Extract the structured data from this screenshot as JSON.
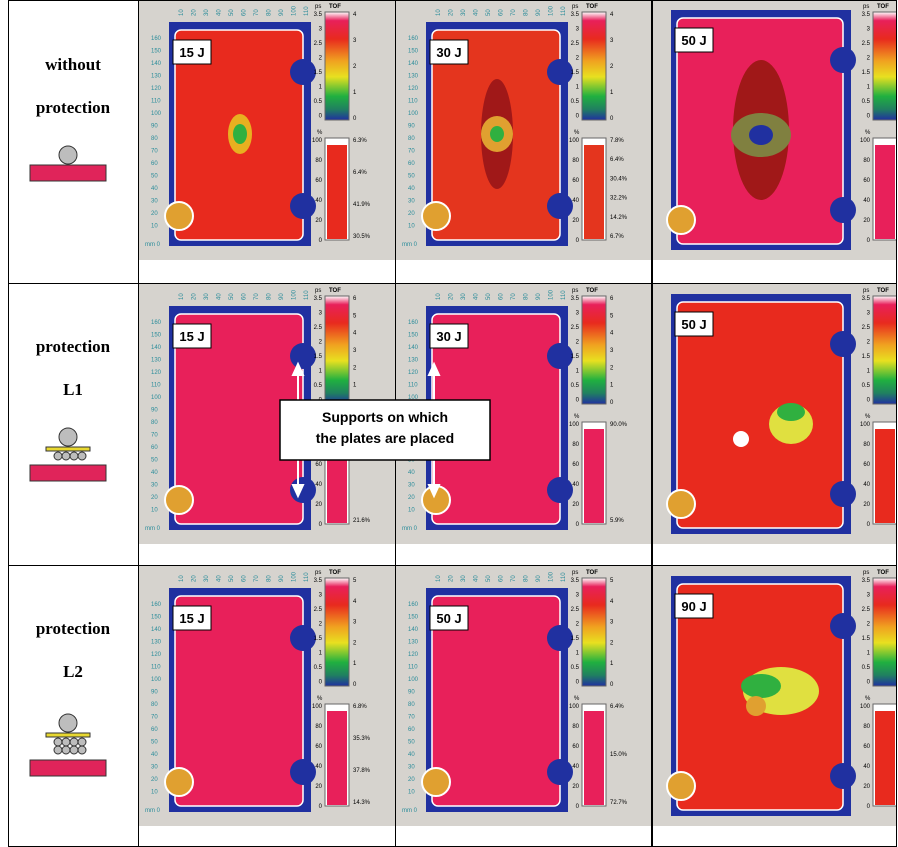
{
  "rows": [
    {
      "label": [
        "without",
        "protection"
      ],
      "panels": [
        {
          "energy": "15 J",
          "right_ticks": [
            "4",
            "3",
            "2",
            "1",
            "0"
          ],
          "hist_labels": [
            "6.3%",
            "6.4%",
            "41.9%",
            "30.5%"
          ]
        },
        {
          "energy": "30 J",
          "right_ticks": [
            "4",
            "3",
            "2",
            "1",
            "0"
          ],
          "hist_labels": [
            "7.8%",
            "6.4%",
            "30.4%",
            "32.2%",
            "14.2%",
            "6.7%"
          ]
        },
        {
          "energy": "50 J",
          "right_ticks": [],
          "hist_labels": []
        }
      ]
    },
    {
      "label": [
        "protection",
        "L1"
      ],
      "panels": [
        {
          "energy": "15 J",
          "right_ticks": [
            "6",
            "5",
            "4",
            "3",
            "2",
            "1",
            "0"
          ],
          "hist_labels": [
            "40.2%",
            "21.6%"
          ]
        },
        {
          "energy": "30 J",
          "right_ticks": [
            "6",
            "5",
            "4",
            "3",
            "2",
            "1",
            "0"
          ],
          "hist_labels": [
            "90.0%",
            "5.9%"
          ]
        },
        {
          "energy": "50 J",
          "right_ticks": [],
          "hist_labels": []
        }
      ]
    },
    {
      "label": [
        "protection",
        "L2"
      ],
      "panels": [
        {
          "energy": "15 J",
          "right_ticks": [
            "5",
            "4",
            "3",
            "2",
            "1",
            "0"
          ],
          "hist_labels": [
            "6.8%",
            "35.3%",
            "37.8%",
            "14.3%"
          ]
        },
        {
          "energy": "50 J",
          "right_ticks": [
            "5",
            "4",
            "3",
            "2",
            "1",
            "0"
          ],
          "hist_labels": [
            "6.4%",
            "15.0%",
            "72.7%"
          ]
        },
        {
          "energy": "90 J",
          "right_ticks": [],
          "hist_labels": []
        }
      ]
    }
  ],
  "scale": {
    "unit": "ps",
    "title": "TOF",
    "ticks": [
      "3.5",
      "3",
      "2.5",
      "2",
      "1.5",
      "1",
      "0.5",
      "0"
    ],
    "hist_unit": "%",
    "hist_ticks": [
      "100",
      "80",
      "60",
      "40",
      "20",
      "0"
    ]
  },
  "scan_axis": {
    "y_ticks": [
      "160",
      "150",
      "140",
      "130",
      "120",
      "110",
      "100",
      "90",
      "80",
      "70",
      "60",
      "50",
      "40",
      "30",
      "20",
      "10"
    ],
    "x_ticks": [
      "10",
      "20",
      "30",
      "40",
      "50",
      "60",
      "70",
      "80",
      "90",
      "100",
      "110"
    ],
    "origin": "mm 0"
  },
  "annotation": [
    "Supports on which",
    "the plates are placed"
  ]
}
